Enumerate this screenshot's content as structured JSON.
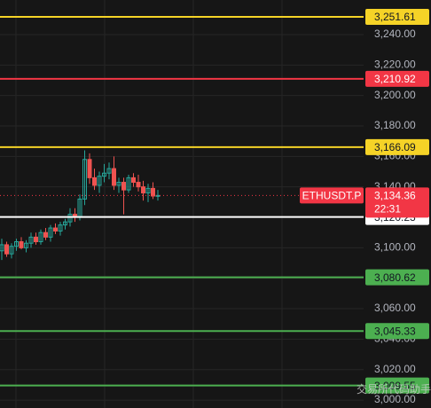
{
  "chart_data": {
    "type": "candlestick",
    "symbol": "ETHUSDT.P",
    "countdown": "22:31",
    "last": {
      "value": 3134.36,
      "label": "3,134.36",
      "color": "#f23645"
    },
    "up_color": "#26a69a",
    "down_color": "#ef5350",
    "open": [
      3098,
      3102,
      3096,
      3101,
      3104,
      3100,
      3103,
      3107,
      3104,
      3110,
      3107,
      3113,
      3111,
      3115,
      3117,
      3122,
      3120,
      3132,
      3158,
      3146,
      3141,
      3147,
      3149,
      3152,
      3141,
      3143,
      3138,
      3146,
      3143,
      3140,
      3136,
      3139,
      3134
    ],
    "high": [
      3106,
      3104,
      3103,
      3106,
      3107,
      3105,
      3110,
      3110,
      3112,
      3113,
      3115,
      3116,
      3117,
      3119,
      3126,
      3126,
      3135,
      3164,
      3162,
      3152,
      3150,
      3155,
      3156,
      3160,
      3146,
      3146,
      3148,
      3149,
      3148,
      3144,
      3142,
      3143,
      3138
    ],
    "low": [
      3092,
      3094,
      3093,
      3098,
      3099,
      3097,
      3100,
      3102,
      3102,
      3105,
      3104,
      3109,
      3108,
      3112,
      3114,
      3117,
      3118,
      3128,
      3142,
      3138,
      3136,
      3143,
      3145,
      3138,
      3136,
      3122,
      3136,
      3140,
      3137,
      3131,
      3130,
      3132,
      3131
    ],
    "close": [
      3102,
      3096,
      3101,
      3104,
      3100,
      3103,
      3107,
      3104,
      3110,
      3107,
      3113,
      3111,
      3115,
      3117,
      3122,
      3120,
      3132,
      3158,
      3146,
      3141,
      3147,
      3149,
      3152,
      3141,
      3143,
      3138,
      3146,
      3143,
      3140,
      3136,
      3139,
      3134,
      3134.36
    ],
    "levels": [
      {
        "value": 3251.61,
        "label": "3,251.61",
        "color": "#f5d327"
      },
      {
        "value": 3210.92,
        "label": "3,210.92",
        "color": "#f23645"
      },
      {
        "value": 3166.09,
        "label": "3,166.09",
        "color": "#f5d327"
      },
      {
        "value": 3120.23,
        "label": "3,120.23",
        "color": "#ffffff"
      },
      {
        "value": 3080.62,
        "label": "3,080.62",
        "color": "#4caf50"
      },
      {
        "value": 3045.33,
        "label": "3,045.33",
        "color": "#4caf50"
      },
      {
        "value": 3009.55,
        "label": "3,009.55",
        "color": "#4caf50"
      }
    ],
    "ylim": [
      2994.8,
      3262.7
    ],
    "yticks": [
      {
        "value": 3000,
        "label": "3,000.00"
      },
      {
        "value": 3020,
        "label": "3,020.00"
      },
      {
        "value": 3040,
        "label": "3,040.00"
      },
      {
        "value": 3060,
        "label": "3,060.00"
      },
      {
        "value": 3080,
        "label": "3,080.00"
      },
      {
        "value": 3100,
        "label": "3,100.00"
      },
      {
        "value": 3120,
        "label": "3,120.00"
      },
      {
        "value": 3140,
        "label": "3,140.00"
      },
      {
        "value": 3160,
        "label": "3,160.00"
      },
      {
        "value": 3180,
        "label": "3,180.00"
      },
      {
        "value": 3200,
        "label": "3,200.00"
      },
      {
        "value": 3220,
        "label": "3,220.00"
      },
      {
        "value": 3240,
        "label": "3,240.00"
      }
    ],
    "grid": true,
    "watermark": "交易所代码助手"
  }
}
